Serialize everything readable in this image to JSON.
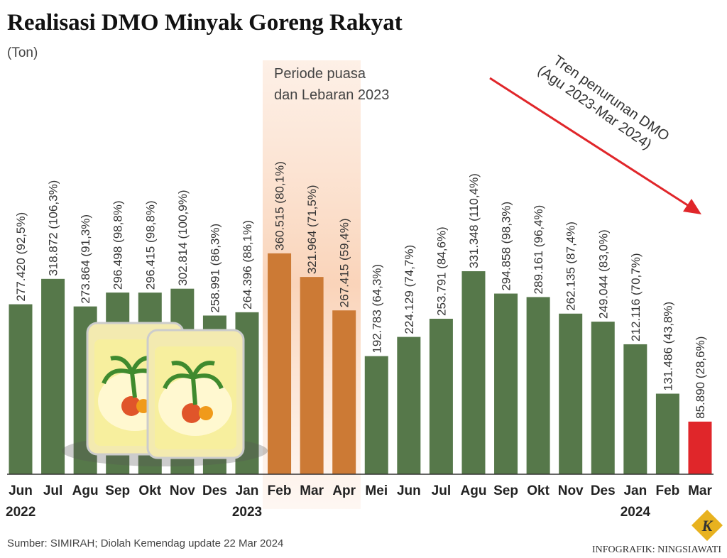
{
  "chart_data": {
    "type": "bar",
    "title": "Realisasi DMO Minyak Goreng Rakyat",
    "subtitle": "(Ton)",
    "categories": [
      "Jun",
      "Jul",
      "Agu",
      "Sep",
      "Okt",
      "Nov",
      "Des",
      "Jan",
      "Feb",
      "Mar",
      "Apr",
      "Mei",
      "Jun",
      "Jul",
      "Agu",
      "Sep",
      "Okt",
      "Nov",
      "Des",
      "Jan",
      "Feb",
      "Mar"
    ],
    "category_years": [
      "2022",
      null,
      null,
      null,
      null,
      null,
      null,
      "2023",
      null,
      null,
      null,
      null,
      null,
      null,
      null,
      null,
      null,
      null,
      null,
      "2024",
      null,
      null
    ],
    "values": [
      277420,
      318872,
      273864,
      296498,
      296415,
      302814,
      258991,
      264396,
      360515,
      321964,
      267415,
      192783,
      224129,
      253791,
      331348,
      294858,
      289161,
      262135,
      249044,
      212116,
      131486,
      85890
    ],
    "value_labels": [
      "277.420 (92,5%)",
      "318.872 (106,3%)",
      "273.864 (91,3%)",
      "296.498 (98,8%)",
      "296.415 (98,8%)",
      "302.814 (100,9%)",
      "258.991 (86,3%)",
      "264.396 (88,1%)",
      "360.515 (80,1%)",
      "321.964 (71,5%)",
      "267.415 (59,4%)",
      "192.783 (64,3%)",
      "224.129 (74,7%)",
      "253.791 (84,6%)",
      "331.348 (110,4%)",
      "294.858 (98,3%)",
      "289.161 (96,4%)",
      "262.135 (87,4%)",
      "249.044 (83,0%)",
      "212.116 (70,7%)",
      "131.486 (43,8%)",
      "85.890 (28,6%)"
    ],
    "colors": [
      "#56784a",
      "#56784a",
      "#56784a",
      "#56784a",
      "#56784a",
      "#56784a",
      "#56784a",
      "#56784a",
      "#cc7a35",
      "#cc7a35",
      "#cc7a35",
      "#56784a",
      "#56784a",
      "#56784a",
      "#56784a",
      "#56784a",
      "#56784a",
      "#56784a",
      "#56784a",
      "#56784a",
      "#56784a",
      "#e0262a"
    ],
    "highlight_label": [
      "Periode puasa",
      "dan Lebaran 2023"
    ],
    "trend_label": [
      "Tren penurunan DMO",
      "(Agu 2023-Mar 2024)"
    ],
    "source": "Sumber: SIMIRAH; Diolah Kemendag update 22 Mar 2024",
    "credit": "INFOGRAFIK: NINGSIAWATI",
    "logo": "K"
  }
}
